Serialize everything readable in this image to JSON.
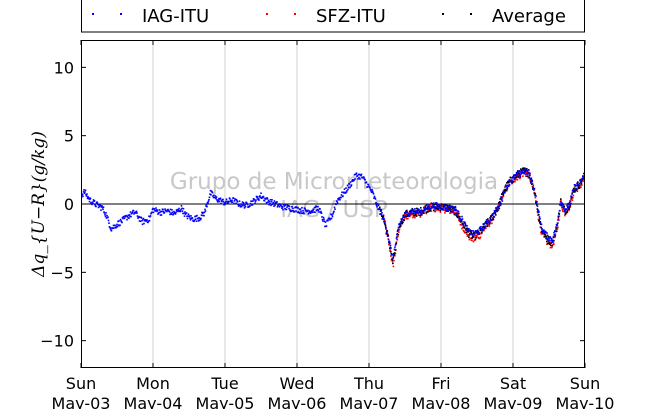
{
  "chart_data": {
    "type": "scatter",
    "ylabel": "Δq_{U−R}(g/kg)",
    "ylim": [
      -12,
      12
    ],
    "yticks": [
      -10,
      -5,
      0,
      5,
      10
    ],
    "ytick_labels": [
      "−10",
      "−5",
      "0",
      "5",
      "10"
    ],
    "xlim": [
      "2015-05-03",
      "2015-05-10"
    ],
    "xtick_days": [
      "Sun",
      "Mon",
      "Tue",
      "Wed",
      "Thu",
      "Fri",
      "Sat",
      "Sun"
    ],
    "xtick_dates": [
      "May-03",
      "May-04",
      "May-05",
      "May-06",
      "May-07",
      "May-08",
      "May-09",
      "May-10"
    ],
    "grid": "vertical",
    "zero_line": true,
    "legend": {
      "placement": "top",
      "entries": [
        "IAG-ITU",
        "SFZ-ITU",
        "Average"
      ]
    },
    "watermark": [
      "Grupo de Micrometeorologia",
      "IAG / USP"
    ],
    "series": [
      {
        "name": "IAG-ITU",
        "color": "#0000ff",
        "days_covered": [
          0.0,
          7.0
        ],
        "trend": [
          [
            0.0,
            0.6
          ],
          [
            0.05,
            0.9
          ],
          [
            0.12,
            0.3
          ],
          [
            0.2,
            0.0
          ],
          [
            0.3,
            -0.3
          ],
          [
            0.35,
            -0.8
          ],
          [
            0.42,
            -1.8
          ],
          [
            0.5,
            -1.5
          ],
          [
            0.58,
            -1.2
          ],
          [
            0.65,
            -0.9
          ],
          [
            0.75,
            -0.6
          ],
          [
            0.85,
            -1.3
          ],
          [
            0.95,
            -1.1
          ],
          [
            1.0,
            -0.4
          ],
          [
            1.1,
            -0.6
          ],
          [
            1.2,
            -0.5
          ],
          [
            1.3,
            -0.7
          ],
          [
            1.4,
            -0.3
          ],
          [
            1.45,
            -0.8
          ],
          [
            1.55,
            -1.1
          ],
          [
            1.65,
            -1.0
          ],
          [
            1.72,
            -0.6
          ],
          [
            1.75,
            0.0
          ],
          [
            1.8,
            0.8
          ],
          [
            1.87,
            0.4
          ],
          [
            2.0,
            0.1
          ],
          [
            2.1,
            0.3
          ],
          [
            2.2,
            0.0
          ],
          [
            2.3,
            -0.1
          ],
          [
            2.4,
            0.2
          ],
          [
            2.5,
            0.6
          ],
          [
            2.6,
            0.2
          ],
          [
            2.7,
            0.0
          ],
          [
            2.8,
            -0.2
          ],
          [
            2.9,
            -0.3
          ],
          [
            3.0,
            -0.4
          ],
          [
            3.1,
            -0.5
          ],
          [
            3.2,
            -0.5
          ],
          [
            3.3,
            -0.3
          ],
          [
            3.4,
            -1.6
          ],
          [
            3.5,
            -0.7
          ],
          [
            3.55,
            0.2
          ],
          [
            3.65,
            0.8
          ],
          [
            3.75,
            1.5
          ],
          [
            3.82,
            2.1
          ],
          [
            3.9,
            2.0
          ],
          [
            3.98,
            1.4
          ],
          [
            4.05,
            0.8
          ],
          [
            4.12,
            -0.2
          ],
          [
            4.2,
            -1.0
          ],
          [
            4.25,
            -2.0
          ],
          [
            4.3,
            -3.2
          ],
          [
            4.33,
            -4.0
          ],
          [
            4.37,
            -3.0
          ],
          [
            4.42,
            -1.5
          ],
          [
            4.5,
            -0.8
          ],
          [
            4.6,
            -0.5
          ],
          [
            4.7,
            -0.6
          ],
          [
            4.8,
            -0.3
          ],
          [
            4.9,
            -0.1
          ],
          [
            5.0,
            -0.2
          ],
          [
            5.1,
            -0.3
          ],
          [
            5.2,
            -0.4
          ],
          [
            5.3,
            -1.2
          ],
          [
            5.38,
            -2.0
          ],
          [
            5.45,
            -2.2
          ],
          [
            5.55,
            -1.9
          ],
          [
            5.63,
            -1.4
          ],
          [
            5.7,
            -1.0
          ],
          [
            5.8,
            -0.2
          ],
          [
            5.88,
            1.0
          ],
          [
            5.95,
            1.6
          ],
          [
            6.05,
            2.1
          ],
          [
            6.15,
            2.4
          ],
          [
            6.22,
            2.3
          ],
          [
            6.3,
            1.0
          ],
          [
            6.35,
            -0.5
          ],
          [
            6.4,
            -1.8
          ],
          [
            6.48,
            -2.4
          ],
          [
            6.55,
            -2.6
          ],
          [
            6.62,
            -1.4
          ],
          [
            6.66,
            0.3
          ],
          [
            6.72,
            -0.4
          ],
          [
            6.78,
            -0.1
          ],
          [
            6.85,
            1.2
          ],
          [
            6.93,
            1.5
          ],
          [
            7.0,
            2.1
          ]
        ]
      },
      {
        "name": "SFZ-ITU",
        "color": "#ff0000",
        "days_covered": [
          4.2,
          7.0
        ],
        "trend": [
          [
            4.2,
            -1.0
          ],
          [
            4.25,
            -2.2
          ],
          [
            4.3,
            -3.5
          ],
          [
            4.33,
            -4.6
          ],
          [
            4.37,
            -3.4
          ],
          [
            4.42,
            -1.7
          ],
          [
            4.5,
            -0.9
          ],
          [
            4.6,
            -0.7
          ],
          [
            4.7,
            -0.7
          ],
          [
            4.8,
            -0.4
          ],
          [
            4.9,
            -0.3
          ],
          [
            5.0,
            -0.3
          ],
          [
            5.1,
            -0.4
          ],
          [
            5.2,
            -0.6
          ],
          [
            5.3,
            -1.6
          ],
          [
            5.38,
            -2.3
          ],
          [
            5.45,
            -2.6
          ],
          [
            5.55,
            -2.2
          ],
          [
            5.63,
            -1.6
          ],
          [
            5.7,
            -1.2
          ],
          [
            5.8,
            -0.3
          ],
          [
            5.88,
            0.9
          ],
          [
            5.95,
            1.5
          ],
          [
            6.05,
            2.0
          ],
          [
            6.15,
            2.3
          ],
          [
            6.22,
            2.2
          ],
          [
            6.3,
            0.8
          ],
          [
            6.35,
            -0.8
          ],
          [
            6.4,
            -2.1
          ],
          [
            6.48,
            -2.8
          ],
          [
            6.55,
            -3.0
          ],
          [
            6.62,
            -1.7
          ],
          [
            6.66,
            0.1
          ],
          [
            6.72,
            -0.6
          ],
          [
            6.78,
            -0.2
          ],
          [
            6.85,
            1.0
          ],
          [
            6.93,
            1.4
          ],
          [
            7.0,
            2.0
          ]
        ]
      },
      {
        "name": "Average",
        "color": "#000000",
        "days_covered": [
          4.15,
          7.0
        ],
        "trend": [
          [
            4.15,
            -0.5
          ],
          [
            4.2,
            -1.0
          ],
          [
            4.25,
            -2.1
          ],
          [
            4.3,
            -3.3
          ],
          [
            4.33,
            -4.3
          ],
          [
            4.37,
            -3.2
          ],
          [
            4.42,
            -1.6
          ],
          [
            4.5,
            -0.8
          ],
          [
            4.6,
            -0.6
          ],
          [
            4.7,
            -0.6
          ],
          [
            4.8,
            -0.3
          ],
          [
            4.9,
            -0.2
          ],
          [
            5.0,
            -0.2
          ],
          [
            5.1,
            -0.3
          ],
          [
            5.2,
            -0.5
          ],
          [
            5.3,
            -1.4
          ],
          [
            5.38,
            -2.1
          ],
          [
            5.45,
            -2.4
          ],
          [
            5.55,
            -2.0
          ],
          [
            5.63,
            -1.5
          ],
          [
            5.7,
            -1.1
          ],
          [
            5.8,
            -0.2
          ],
          [
            5.88,
            1.0
          ],
          [
            5.95,
            1.6
          ],
          [
            6.05,
            2.1
          ],
          [
            6.15,
            2.4
          ],
          [
            6.22,
            2.3
          ],
          [
            6.3,
            0.9
          ],
          [
            6.35,
            -0.6
          ],
          [
            6.4,
            -1.9
          ],
          [
            6.48,
            -2.6
          ],
          [
            6.55,
            -2.8
          ],
          [
            6.62,
            -1.5
          ],
          [
            6.66,
            0.2
          ],
          [
            6.72,
            -0.5
          ],
          [
            6.78,
            -0.1
          ],
          [
            6.85,
            1.1
          ],
          [
            6.93,
            1.5
          ],
          [
            7.0,
            2.1
          ]
        ]
      }
    ]
  }
}
